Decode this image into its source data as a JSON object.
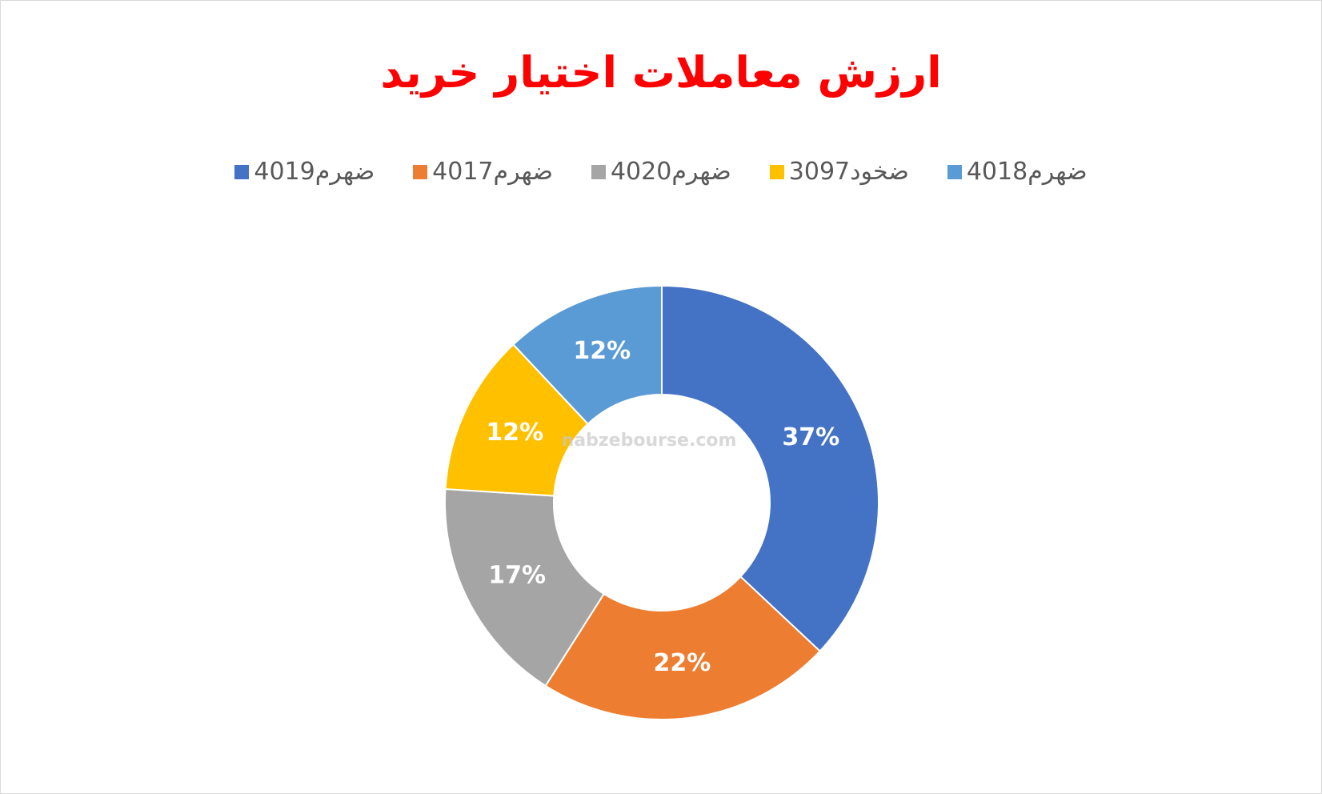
{
  "chart_data": {
    "type": "donut",
    "title": "ارزش معاملات اختیار خرید",
    "categories": [
      "ضهرم4019",
      "ضهرم4017",
      "ضهرم4020",
      "ضخود3097",
      "ضهرم4018"
    ],
    "values": [
      37,
      22,
      17,
      12,
      12
    ],
    "value_labels": [
      "37%",
      "22%",
      "17%",
      "12%",
      "12%"
    ],
    "colors": [
      "#4472c4",
      "#ed7d31",
      "#a5a5a5",
      "#ffc000",
      "#5b9bd5"
    ],
    "watermark": "nabzebourse.com"
  }
}
